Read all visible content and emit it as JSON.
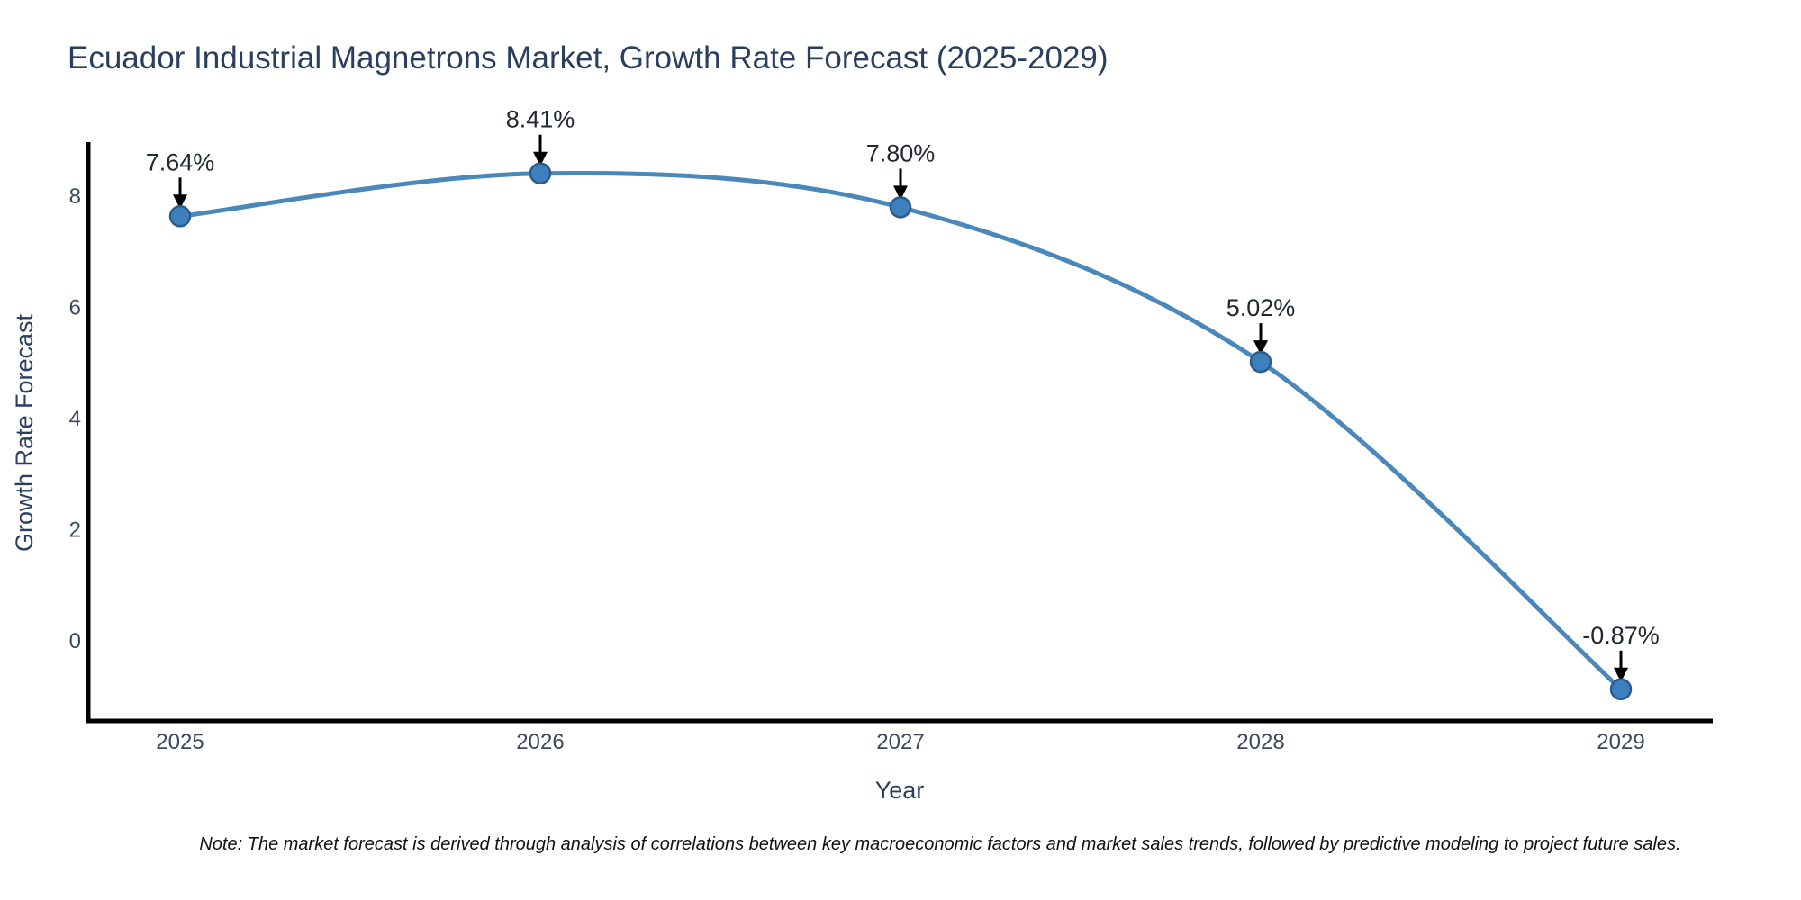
{
  "chart_data": {
    "type": "line",
    "title": "Ecuador Industrial Magnetrons Market, Growth Rate Forecast (2025-2029)",
    "xlabel": "Year",
    "ylabel": "Growth Rate Forecast",
    "x": [
      "2025",
      "2026",
      "2027",
      "2028",
      "2029"
    ],
    "y": [
      7.64,
      8.41,
      7.8,
      5.02,
      -0.87
    ],
    "point_labels": [
      "7.64%",
      "8.41%",
      "7.80%",
      "5.02%",
      "-0.87%"
    ],
    "yticks": [
      0,
      2,
      4,
      6,
      8
    ],
    "ylim": [
      -1.44,
      8.94
    ],
    "grid": false,
    "legend": false,
    "annotations_have_arrows": true
  },
  "note": "Note: The market forecast is derived through analysis of correlations between key macroeconomic factors and market sales trends, followed by predictive modeling to project future sales.",
  "colors": {
    "line": "#4a87ba",
    "marker_fill": "#3e7fbd",
    "marker_edge": "#2a5d8c",
    "axis_line": "#000000",
    "title_text": "#2a3f5f",
    "axis_title_text": "#2a3f5f",
    "tick_text": "#3c4961",
    "annotation_text": "#222831",
    "arrow": "#000000",
    "note_text": "#111111",
    "background": "#ffffff"
  }
}
